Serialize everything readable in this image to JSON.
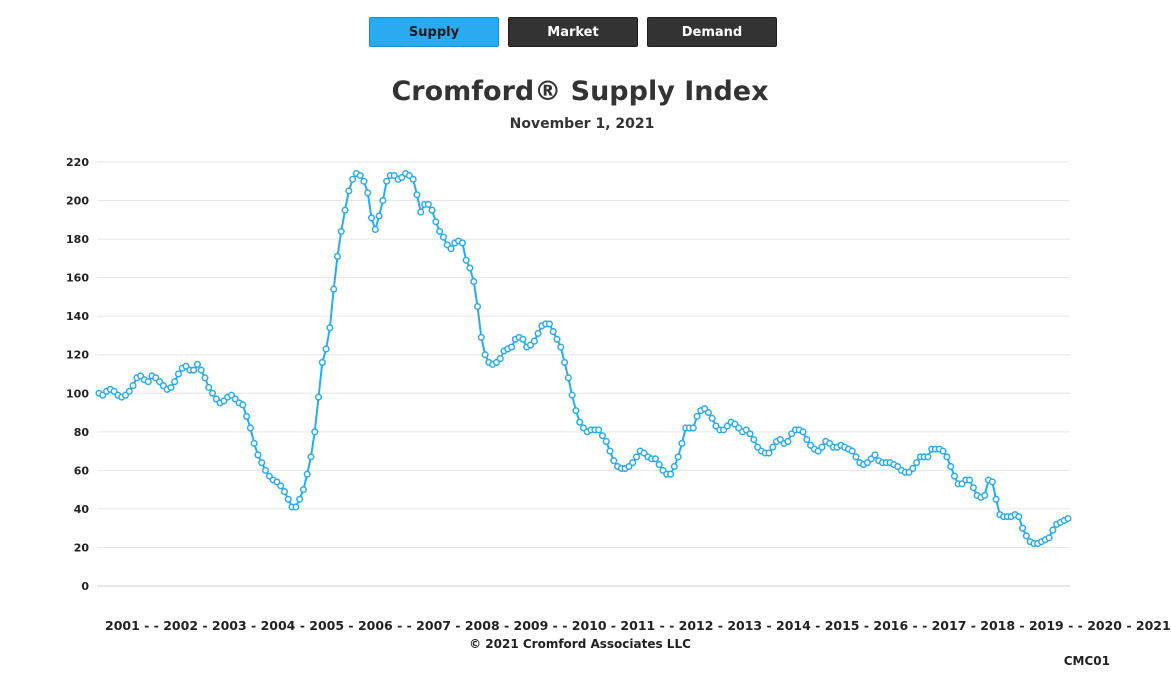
{
  "tabs": [
    {
      "label": "Supply",
      "active": true
    },
    {
      "label": "Market",
      "active": false
    },
    {
      "label": "Demand",
      "active": false
    }
  ],
  "colors": {
    "active_tab": "#29abf2",
    "inactive_tab": "#333333",
    "line": "#29abf2",
    "grid": "#e6e6e6"
  },
  "chart_data": {
    "type": "line",
    "title": "Cromford® Supply Index",
    "subtitle": "November 1, 2021",
    "x_axis_text": "2001 - - 2002 - 2003 - 2004 - 2005 - 2006 - - 2007 - 2008 - 2009 - - 2010 - 2011 - - 2012 - 2013 - 2014 - 2015 - 2016 - - 2017 - 2018 - 2019 - - 2020 - 2021",
    "x_start": "2001-01",
    "x_end": "2021-11",
    "ylim": [
      0,
      220
    ],
    "yticks": [
      0,
      20,
      40,
      60,
      80,
      100,
      120,
      140,
      160,
      180,
      200,
      220
    ],
    "grid": true,
    "marker": "open-circle",
    "series": [
      {
        "name": "",
        "values": [
          100,
          99,
          101,
          102,
          101,
          99,
          98,
          99,
          101,
          104,
          108,
          109,
          107,
          106,
          109,
          108,
          106,
          104,
          102,
          103,
          106,
          110,
          113,
          114,
          112,
          112,
          115,
          112,
          108,
          103,
          100,
          97,
          95,
          96,
          98,
          99,
          97,
          95,
          94,
          88,
          82,
          74,
          68,
          64,
          60,
          57,
          55,
          54,
          52,
          49,
          45,
          41,
          41,
          45,
          50,
          58,
          67,
          80,
          98,
          116,
          123,
          134,
          154,
          171,
          184,
          195,
          205,
          211,
          214,
          213,
          210,
          204,
          191,
          185,
          192,
          200,
          210,
          213,
          213,
          211,
          212,
          214,
          213,
          211,
          203,
          194,
          198,
          198,
          195,
          189,
          184,
          181,
          177,
          175,
          178,
          179,
          178,
          169,
          165,
          158,
          145,
          129,
          120,
          116,
          115,
          116,
          118,
          122,
          123,
          124,
          128,
          129,
          128,
          124,
          125,
          127,
          131,
          135,
          136,
          136,
          132,
          128,
          124,
          116,
          108,
          99,
          91,
          85,
          82,
          80,
          81,
          81,
          81,
          78,
          75,
          70,
          65,
          62,
          61,
          61,
          62,
          64,
          67,
          70,
          69,
          67,
          66,
          66,
          63,
          60,
          58,
          58,
          62,
          67,
          74,
          82,
          82,
          82,
          88,
          91,
          92,
          90,
          87,
          83,
          81,
          81,
          83,
          85,
          84,
          82,
          80,
          81,
          79,
          76,
          72,
          70,
          69,
          69,
          72,
          75,
          76,
          74,
          75,
          79,
          81,
          81,
          80,
          76,
          73,
          71,
          70,
          72,
          75,
          74,
          72,
          72,
          73,
          72,
          71,
          70,
          67,
          64,
          63,
          64,
          66,
          68,
          65,
          64,
          64,
          64,
          63,
          62,
          60,
          59,
          59,
          61,
          64,
          67,
          67,
          67,
          71,
          71,
          71,
          70,
          67,
          62,
          57,
          53,
          53,
          55,
          55,
          51,
          47,
          46,
          47,
          55,
          54,
          45,
          37,
          36,
          36,
          36,
          37,
          36,
          30,
          26,
          23,
          22,
          22,
          23,
          24,
          25,
          29,
          32,
          33,
          34,
          35
        ]
      }
    ]
  },
  "footer": {
    "copyright": "© 2021 Cromford Associates LLC",
    "code": "CMC01"
  }
}
